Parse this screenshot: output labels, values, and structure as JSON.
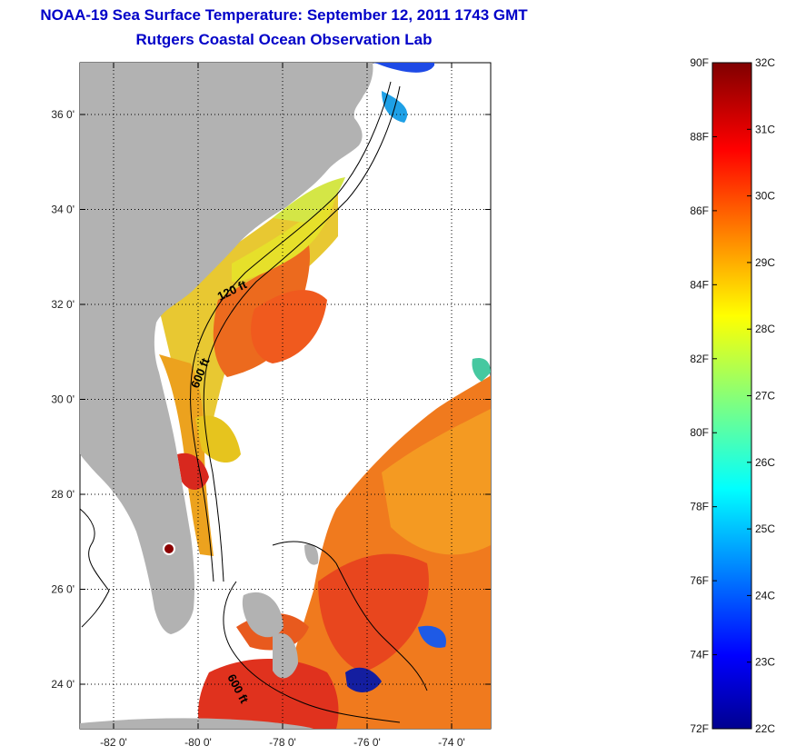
{
  "title": {
    "line1": "NOAA-19 Sea Surface Temperature:  September 12, 2011 1743 GMT",
    "line2": "Rutgers Coastal Ocean Observation Lab"
  },
  "map": {
    "lat_ticks": [
      {
        "value": 24,
        "label": "24 0'"
      },
      {
        "value": 26,
        "label": "26 0'"
      },
      {
        "value": 28,
        "label": "28 0'"
      },
      {
        "value": 30,
        "label": "30 0'"
      },
      {
        "value": 32,
        "label": "32 0'"
      },
      {
        "value": 34,
        "label": "34 0'"
      },
      {
        "value": 36,
        "label": "36 0'"
      }
    ],
    "lon_ticks": [
      {
        "value": -82,
        "label": "-82 0'"
      },
      {
        "value": -80,
        "label": "-80 0'"
      },
      {
        "value": -78,
        "label": "-78 0'"
      },
      {
        "value": -76,
        "label": "-76 0'"
      },
      {
        "value": -74,
        "label": "-74 0'"
      }
    ],
    "contour_labels": {
      "c120": "120 ft",
      "c600a": "600 ft",
      "c600b": "600 ft"
    },
    "colors": {
      "land": "#b2b2b2",
      "warm": "#f25a1e",
      "hot": "#e8321e",
      "mid": "#f7a21e",
      "yellow": "#e6e628",
      "cool": "#1e5ae6",
      "deep": "#0a1496"
    }
  },
  "colorbar": {
    "fahrenheit_labels": [
      "90F",
      "88F",
      "86F",
      "84F",
      "82F",
      "80F",
      "78F",
      "76F",
      "74F",
      "72F"
    ],
    "celsius_labels": [
      "32C",
      "31C",
      "30C",
      "29C",
      "28C",
      "27C",
      "26C",
      "25C",
      "24C",
      "23C",
      "22C"
    ],
    "range_f": [
      72,
      90
    ],
    "range_c": [
      22,
      32
    ],
    "colormap": "jet"
  }
}
